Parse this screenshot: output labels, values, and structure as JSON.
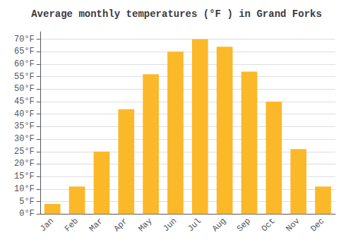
{
  "chart_data": {
    "type": "bar",
    "title": "Average monthly temperatures (°F ) in Grand Forks",
    "categories": [
      "Jan",
      "Feb",
      "Mar",
      "Apr",
      "May",
      "Jun",
      "Jul",
      "Aug",
      "Sep",
      "Oct",
      "Nov",
      "Dec"
    ],
    "values": [
      4,
      11,
      25,
      42,
      56,
      65,
      70,
      67,
      57,
      45,
      26,
      11
    ],
    "color": "#FBB829",
    "ylim": [
      0,
      73
    ],
    "yticks": [
      {
        "value": 0,
        "label": "0°F"
      },
      {
        "value": 5,
        "label": "5°F"
      },
      {
        "value": 10,
        "label": "10°F"
      },
      {
        "value": 15,
        "label": "15°F"
      },
      {
        "value": 20,
        "label": "20°F"
      },
      {
        "value": 25,
        "label": "25°F"
      },
      {
        "value": 30,
        "label": "30°F"
      },
      {
        "value": 35,
        "label": "35°F"
      },
      {
        "value": 40,
        "label": "40°F"
      },
      {
        "value": 45,
        "label": "45°F"
      },
      {
        "value": 50,
        "label": "50°F"
      },
      {
        "value": 55,
        "label": "55°F"
      },
      {
        "value": 60,
        "label": "60°F"
      },
      {
        "value": 65,
        "label": "65°F"
      },
      {
        "value": 70,
        "label": "70°F"
      }
    ],
    "grid": true
  }
}
